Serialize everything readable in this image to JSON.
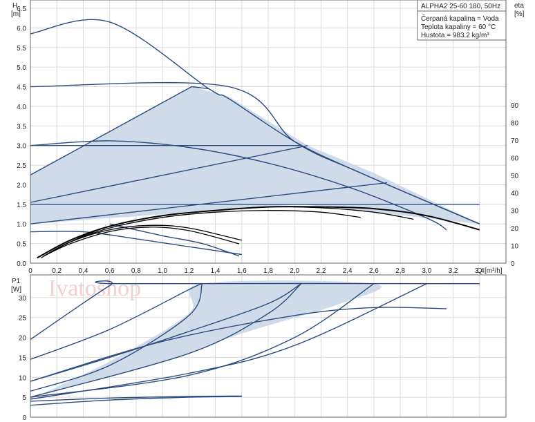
{
  "watermark": "Ivatoshop",
  "info": {
    "model": "ALPHA2 25-60 180, 50Hz",
    "liquid": "Čerpaná kapalina = Voda",
    "temperature": "Teplota kapaliny = 60 °C",
    "density": "Hustota = 983.2 kg/m³"
  },
  "colors": {
    "curve": "#2a4a80",
    "shade": "#cfdbe8",
    "grid": "#d9d9d9",
    "eta": "#000000"
  },
  "chart_data": [
    {
      "type": "line",
      "title": "",
      "ylabel": "H",
      "yunit": "[m]",
      "y2label": "eta",
      "y2unit": "[%]",
      "xlabel": "Q",
      "xunit": "[m³/h]",
      "xlim": [
        0,
        3.6
      ],
      "ylim": [
        0,
        6.5
      ],
      "y2lim": [
        0,
        90
      ],
      "grid": true,
      "xticks": [
        "0",
        "0,2",
        "0,4",
        "0,6",
        "0,8",
        "1,0",
        "1,2",
        "1,4",
        "1,6",
        "1,8",
        "2,0",
        "2,2",
        "2,4",
        "2,6",
        "2,8",
        "3,0",
        "3,2",
        "3,4"
      ],
      "yticks": [
        "0.0",
        "0.5",
        "1.0",
        "1.5",
        "2.0",
        "2.5",
        "3.0",
        "3.5",
        "4.0",
        "4.5",
        "5.0",
        "5.5",
        "6.0",
        "6.5"
      ],
      "y2ticks": [
        "0",
        "10",
        "20",
        "30",
        "40",
        "50",
        "60",
        "70",
        "80",
        "90"
      ],
      "shaded_region": {
        "x": [
          0,
          1.22,
          1.5,
          2.1,
          2.6,
          3.4,
          2.05,
          0
        ],
        "y": [
          2.25,
          4.5,
          4.25,
          3.0,
          2.3,
          1.0,
          1.5,
          1.0
        ]
      },
      "series": [
        {
          "x": [
            0,
            0.6,
            1.35,
            1.5,
            2.0,
            2.5,
            3.4
          ],
          "y": [
            5.85,
            6.15,
            4.45,
            4.2,
            3.1,
            2.3,
            1.0
          ]
        },
        {
          "x": [
            0,
            1.5,
            2.0,
            2.5,
            3.4
          ],
          "y": [
            4.5,
            4.5,
            3.1,
            2.3,
            1.0
          ]
        },
        {
          "x": [
            0,
            1.22,
            1.35
          ],
          "y": [
            2.25,
            4.5,
            4.45
          ]
        },
        {
          "x": [
            0,
            2.05
          ],
          "y": [
            3.0,
            3.0
          ]
        },
        {
          "x": [
            0,
            2.1
          ],
          "y": [
            1.55,
            3.0
          ]
        },
        {
          "x": [
            0,
            3.4
          ],
          "y": [
            1.5,
            1.5
          ]
        },
        {
          "x": [
            0,
            2.7
          ],
          "y": [
            1.0,
            2.05
          ]
        },
        {
          "x": [
            0,
            0.6,
            1.2,
            1.8,
            2.4,
            3.0,
            3.15
          ],
          "y": [
            3.0,
            3.12,
            2.95,
            2.55,
            1.95,
            1.15,
            0.85
          ]
        },
        {
          "x": [
            0,
            0.4,
            0.8,
            1.2,
            1.6
          ],
          "y": [
            0.8,
            0.8,
            0.62,
            0.42,
            0.22
          ]
        },
        {
          "x": [
            0.6,
            1.0,
            1.3,
            1.58
          ],
          "y": [
            1.0,
            0.7,
            0.5,
            0.18
          ]
        }
      ],
      "eta_series": [
        {
          "x": [
            0.05,
            0.3,
            0.6,
            1.0,
            1.4,
            1.8,
            2.2,
            2.6,
            3.0,
            3.4
          ],
          "y": [
            3,
            13,
            21,
            27,
            30,
            32,
            32,
            31,
            27,
            19
          ]
        },
        {
          "x": [
            0.08,
            0.3,
            0.6,
            1.0,
            1.4,
            1.8,
            2.2,
            2.6,
            2.9
          ],
          "y": [
            3,
            12,
            21,
            27,
            30,
            32,
            31.5,
            29,
            25
          ]
        },
        {
          "x": [
            0.1,
            0.3,
            0.6,
            1.0,
            1.4,
            1.8,
            2.2,
            2.5
          ],
          "y": [
            4,
            12,
            20,
            26,
            29,
            30,
            29,
            26
          ]
        },
        {
          "x": [
            0.1,
            0.3,
            0.6,
            0.9,
            1.2,
            1.6
          ],
          "y": [
            4,
            12,
            19,
            21.5,
            20,
            13
          ]
        },
        {
          "x": [
            0.1,
            0.3,
            0.6,
            0.9,
            1.2,
            1.58
          ],
          "y": [
            4,
            11,
            18,
            20.5,
            18.5,
            11
          ]
        }
      ]
    },
    {
      "type": "line",
      "title": "",
      "ylabel": "P1",
      "yunit": "[W]",
      "xlim": [
        0,
        3.6
      ],
      "ylim": [
        0,
        35
      ],
      "grid": true,
      "yticks": [
        "0",
        "5",
        "10",
        "15",
        "20",
        "25",
        "30"
      ],
      "shaded_region": {
        "x": [
          0,
          0.6,
          1.2,
          1.3,
          2.6,
          2.35,
          1.6,
          1.0,
          0
        ],
        "y": [
          4.5,
          14,
          26,
          33.5,
          33.5,
          28.5,
          21,
          14,
          5
        ]
      },
      "series": [
        {
          "x": [
            0,
            0.6,
            0.7,
            3.4
          ],
          "y": [
            19.5,
            33,
            33.5,
            33.5
          ]
        },
        {
          "x": [
            0,
            0.6,
            1.2,
            1.3
          ],
          "y": [
            14.5,
            22,
            32,
            33.5
          ]
        },
        {
          "x": [
            0,
            0.6,
            1.2,
            1.3
          ],
          "y": [
            6.5,
            13,
            25.5,
            33.5
          ]
        },
        {
          "x": [
            0,
            0.6,
            1.2,
            1.8,
            2.05
          ],
          "y": [
            9,
            15,
            21.5,
            28.5,
            33.5
          ]
        },
        {
          "x": [
            0,
            1.2,
            1.8,
            2.05
          ],
          "y": [
            5,
            16,
            26,
            33.5
          ]
        },
        {
          "x": [
            0,
            1.2,
            2.0,
            2.6
          ],
          "y": [
            5,
            10.5,
            20,
            33.5
          ]
        },
        {
          "x": [
            0,
            1.2,
            2.0,
            3.0
          ],
          "y": [
            4.5,
            11,
            18,
            33.5
          ]
        },
        {
          "x": [
            0,
            1.0,
            2.0,
            2.6,
            3.15
          ],
          "y": [
            9,
            19,
            25.5,
            27.5,
            27.2
          ]
        },
        {
          "x": [
            0,
            0.6,
            1.2,
            1.6
          ],
          "y": [
            4,
            4.8,
            5.2,
            5.3
          ]
        },
        {
          "x": [
            0,
            0.6,
            1.2,
            1.6
          ],
          "y": [
            3,
            4.3,
            5.0,
            5.2
          ]
        }
      ]
    }
  ]
}
